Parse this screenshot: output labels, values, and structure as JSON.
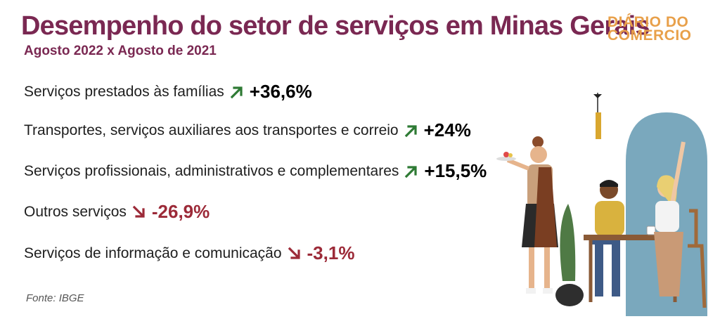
{
  "header": {
    "title": "Desempenho do setor de serviços em Minas Gerais",
    "subtitle": "Agosto 2022 x Agosto de 2021"
  },
  "logo": {
    "line1": "DIÁRIO DO",
    "line2": "COMERCIO"
  },
  "colors": {
    "title": "#7a2852",
    "positive": "#2e7a34",
    "negative": "#9c2a38",
    "logo": "#e8a04a"
  },
  "chart_data": {
    "type": "table",
    "unit": "%",
    "rows": [
      {
        "label": "Serviços prestados às famílias",
        "value": 36.6,
        "display": "+36,6%",
        "direction": "up",
        "icon": "arrow-up-right-icon"
      },
      {
        "label": "Transportes, serviços auxiliares aos transportes e correio",
        "value": 24,
        "display": "+24%",
        "direction": "up",
        "icon": "arrow-up-right-icon"
      },
      {
        "label": "Serviços profissionais, administrativos e complementares",
        "value": 15.5,
        "display": "+15,5%",
        "direction": "up",
        "icon": "arrow-up-right-icon"
      },
      {
        "label": "Outros serviços",
        "value": -26.9,
        "display": "-26,9%",
        "direction": "down",
        "icon": "arrow-down-right-icon"
      },
      {
        "label": "Serviços de informação e comunicação",
        "value": -3.1,
        "display": "-3,1%",
        "direction": "down",
        "icon": "arrow-down-right-icon"
      }
    ]
  },
  "footer": {
    "source": "Fonte: IBGE"
  }
}
